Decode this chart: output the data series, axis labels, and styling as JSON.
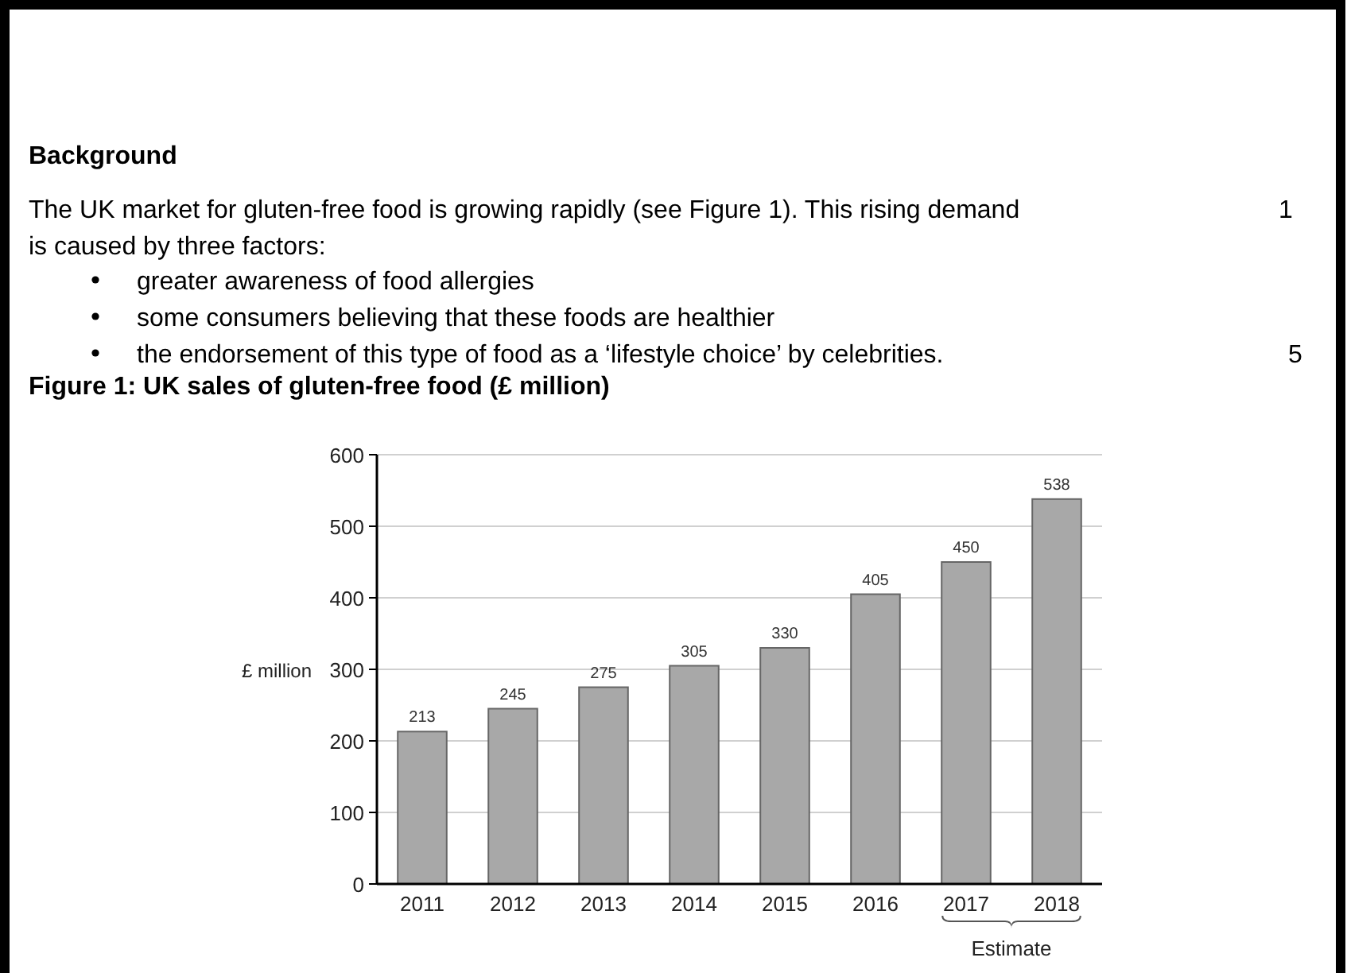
{
  "chart_data": {
    "type": "bar",
    "title": "Figure 1: UK sales of gluten-free food (£ million)",
    "ylabel": "£ million",
    "annotations": [
      "Background",
      "The UK market for gluten-free food is growing rapidly (see Figure 1).  This rising demand",
      "is caused by three factors:",
      "greater awareness of food allergies",
      "some consumers believing that these foods are healthier",
      "the endorsement of this type of food as a ‘lifestyle choice’ by celebrities.",
      "1",
      "5",
      "Estimate"
    ],
    "categories": [
      "2011",
      "2012",
      "2013",
      "2014",
      "2015",
      "2016",
      "2017",
      "2018"
    ],
    "values": [
      213,
      245,
      275,
      305,
      330,
      405,
      450,
      538
    ],
    "color": "#a8a8a8",
    "ylim": [
      0,
      600
    ],
    "yticks": [
      0,
      100,
      200,
      300,
      400,
      500,
      600
    ],
    "grid": "y",
    "data_labels": true
  }
}
